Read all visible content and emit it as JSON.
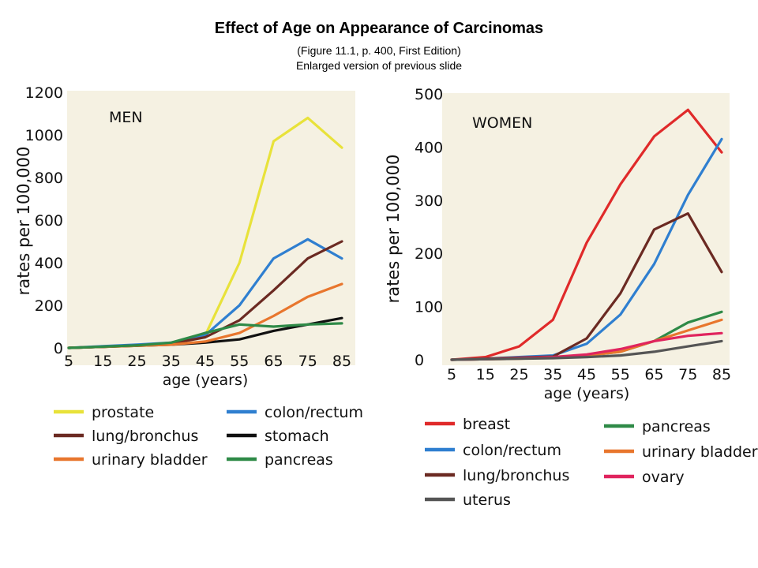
{
  "slide": {
    "title": "Effect of Age on Appearance of Carcinomas",
    "subtitle1": "(Figure 11.1, p. 400, First Edition)",
    "subtitle2": "Enlarged version of previous slide"
  },
  "chart_data": [
    {
      "type": "line",
      "title": "MEN",
      "xlabel": "age (years)",
      "ylabel": "rates per 100,000",
      "categories": [
        "5",
        "15",
        "25",
        "35",
        "45",
        "55",
        "65",
        "75",
        "85"
      ],
      "x": [
        5,
        15,
        25,
        35,
        45,
        55,
        65,
        75,
        85
      ],
      "ylim": [
        0,
        1200
      ],
      "yticks": [
        0,
        200,
        400,
        600,
        800,
        1000,
        1200
      ],
      "grid": false,
      "legend_position": "bottom",
      "series": [
        {
          "name": "prostate",
          "color": "#e8e23a",
          "values": [
            0,
            5,
            10,
            20,
            60,
            400,
            970,
            1080,
            940
          ]
        },
        {
          "name": "colon/rectum",
          "color": "#2f7fd0",
          "values": [
            0,
            8,
            15,
            25,
            60,
            200,
            420,
            510,
            420
          ]
        },
        {
          "name": "lung/bronchus",
          "color": "#6b2a22",
          "values": [
            0,
            5,
            12,
            20,
            50,
            130,
            270,
            420,
            500
          ]
        },
        {
          "name": "stomach",
          "color": "#111111",
          "values": [
            0,
            5,
            10,
            15,
            25,
            40,
            80,
            110,
            140
          ]
        },
        {
          "name": "urinary bladder",
          "color": "#e8762d",
          "values": [
            0,
            5,
            10,
            15,
            30,
            70,
            150,
            240,
            300
          ]
        },
        {
          "name": "pancreas",
          "color": "#2e8a47",
          "values": [
            0,
            6,
            12,
            25,
            70,
            110,
            100,
            110,
            115
          ]
        }
      ]
    },
    {
      "type": "line",
      "title": "WOMEN",
      "xlabel": "age (years)",
      "ylabel": "rates per 100,000",
      "categories": [
        "5",
        "15",
        "25",
        "35",
        "45",
        "55",
        "65",
        "75",
        "85"
      ],
      "x": [
        5,
        15,
        25,
        35,
        45,
        55,
        65,
        75,
        85
      ],
      "ylim": [
        0,
        500
      ],
      "yticks": [
        0,
        100,
        200,
        300,
        400,
        500
      ],
      "grid": false,
      "legend_position": "bottom",
      "series": [
        {
          "name": "breast",
          "color": "#e02a2a",
          "values": [
            0,
            5,
            25,
            75,
            220,
            330,
            420,
            470,
            390
          ]
        },
        {
          "name": "colon/rectum",
          "color": "#2f7fd0",
          "values": [
            0,
            2,
            5,
            8,
            30,
            85,
            180,
            310,
            415
          ]
        },
        {
          "name": "lung/bronchus",
          "color": "#6b2a22",
          "values": [
            0,
            2,
            4,
            6,
            40,
            125,
            245,
            275,
            165
          ]
        },
        {
          "name": "pancreas",
          "color": "#2e8a47",
          "values": [
            0,
            1,
            3,
            5,
            8,
            15,
            35,
            70,
            90
          ]
        },
        {
          "name": "urinary bladder",
          "color": "#e8762d",
          "values": [
            0,
            1,
            2,
            4,
            8,
            15,
            35,
            55,
            75
          ]
        },
        {
          "name": "ovary",
          "color": "#e0245e",
          "values": [
            0,
            1,
            3,
            5,
            10,
            20,
            35,
            45,
            50
          ]
        },
        {
          "name": "uterus",
          "color": "#555555",
          "values": [
            0,
            1,
            2,
            3,
            5,
            8,
            15,
            25,
            35
          ]
        }
      ]
    }
  ]
}
